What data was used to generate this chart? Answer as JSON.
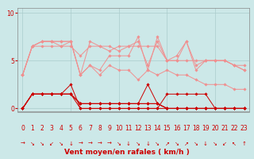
{
  "bg_color": "#cce8e8",
  "grid_color": "#aacccc",
  "xlabel": "Vent moyen/en rafales ( km/h )",
  "x_values": [
    0,
    1,
    2,
    3,
    4,
    5,
    6,
    7,
    8,
    9,
    10,
    11,
    12,
    13,
    14,
    15,
    16,
    17,
    18,
    19,
    20,
    21,
    22,
    23
  ],
  "yticks": [
    0,
    5,
    10
  ],
  "ylim": [
    -0.3,
    10.5
  ],
  "xlim": [
    -0.5,
    23.5
  ],
  "light_lines": [
    [
      3.5,
      6.5,
      6.5,
      6.5,
      6.5,
      6.5,
      5.5,
      6.5,
      6.5,
      6.0,
      6.5,
      6.5,
      6.5,
      6.5,
      6.5,
      5.0,
      5.0,
      5.0,
      5.0,
      5.0,
      5.0,
      5.0,
      4.5,
      4.0
    ],
    [
      3.5,
      6.5,
      7.0,
      7.0,
      6.5,
      7.0,
      3.5,
      7.0,
      6.5,
      6.5,
      6.0,
      6.5,
      7.0,
      4.5,
      7.0,
      5.0,
      5.5,
      7.0,
      4.5,
      5.0,
      5.0,
      5.0,
      4.5,
      4.0
    ],
    [
      3.5,
      6.5,
      7.0,
      7.0,
      7.0,
      7.0,
      3.5,
      4.5,
      4.0,
      5.5,
      5.5,
      5.5,
      7.5,
      4.0,
      7.5,
      5.0,
      5.0,
      7.0,
      4.0,
      5.0,
      5.0,
      5.0,
      4.5,
      4.5
    ],
    [
      3.5,
      6.5,
      7.0,
      7.0,
      7.0,
      7.0,
      3.5,
      4.5,
      3.5,
      4.5,
      4.0,
      4.0,
      3.0,
      4.0,
      3.5,
      4.0,
      3.5,
      3.5,
      3.0,
      2.5,
      2.5,
      2.5,
      2.0,
      2.0
    ]
  ],
  "dark_lines": [
    [
      0.0,
      1.5,
      1.5,
      1.5,
      1.5,
      2.5,
      0.0,
      0.0,
      0.0,
      0.0,
      0.0,
      0.0,
      0.0,
      0.0,
      0.0,
      1.5,
      1.5,
      1.5,
      1.5,
      1.5,
      0.0,
      0.0,
      0.0,
      0.0
    ],
    [
      0.0,
      1.5,
      1.5,
      1.5,
      1.5,
      1.5,
      0.0,
      0.0,
      0.0,
      0.0,
      0.0,
      0.0,
      0.0,
      0.0,
      0.0,
      0.0,
      0.0,
      0.0,
      0.0,
      0.0,
      0.0,
      0.0,
      0.0,
      0.0
    ],
    [
      0.0,
      1.5,
      1.5,
      1.5,
      1.5,
      1.5,
      0.5,
      0.5,
      0.5,
      0.5,
      0.5,
      0.5,
      0.5,
      2.5,
      0.5,
      0.0,
      0.0,
      0.0,
      0.0,
      0.0,
      0.0,
      0.0,
      0.0,
      0.0
    ],
    [
      0.0,
      1.5,
      1.5,
      1.5,
      1.5,
      1.5,
      0.5,
      0.5,
      0.5,
      0.5,
      0.5,
      0.5,
      0.5,
      0.5,
      0.5,
      0.0,
      0.0,
      0.0,
      0.0,
      0.0,
      0.0,
      0.0,
      0.0,
      0.0
    ],
    [
      0.0,
      1.5,
      1.5,
      1.5,
      1.5,
      1.5,
      0.5,
      0.5,
      0.5,
      0.5,
      0.5,
      0.5,
      0.5,
      0.5,
      0.5,
      0.0,
      0.0,
      0.0,
      0.0,
      0.0,
      0.0,
      0.0,
      0.0,
      0.0
    ]
  ],
  "light_color": "#f09090",
  "dark_color": "#cc0000",
  "wind_arrows": [
    "→",
    "↘",
    "↘",
    "↙",
    "↘",
    "↓",
    "→",
    "→",
    "→",
    "→",
    "↘",
    "↓",
    "↘",
    "↓",
    "↘",
    "↗",
    "↘",
    "↗",
    "↘",
    "↓",
    "↘",
    "↙",
    "↖",
    "↑"
  ],
  "xlabel_color": "#cc0000",
  "xlabel_fontsize": 6.5,
  "tick_fontsize": 5.5,
  "marker_size": 1.8,
  "linewidth": 0.7
}
